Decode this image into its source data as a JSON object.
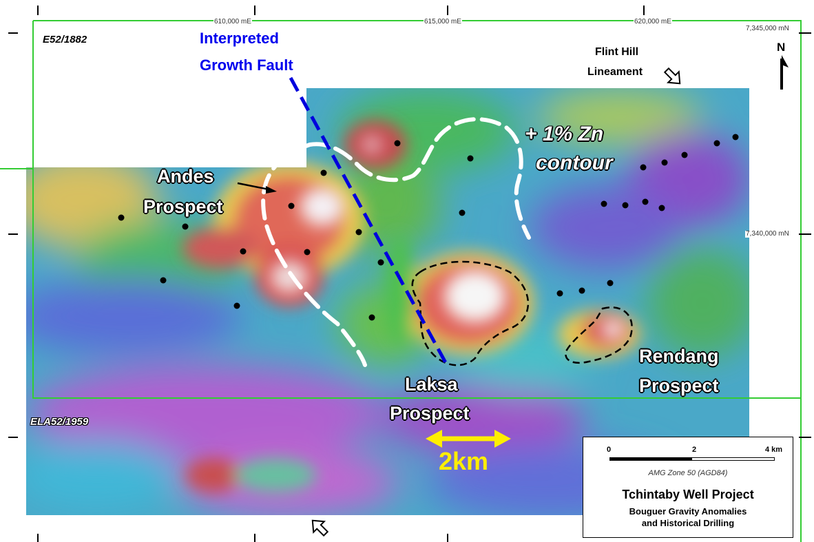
{
  "map": {
    "grid_labels": {
      "x1": "610,000 mE",
      "x2": "615,000 mE",
      "x3": "620,000 mE",
      "y1": "7,345,000 mN",
      "y2": "7,340,000 mN"
    },
    "north_label": "N",
    "lease_e52": "E52/1882",
    "lease_ela52": "ELA52/1959",
    "fault_label_line1": "Interpreted",
    "fault_label_line2": "Growth Fault",
    "lineament_line1": "Flint Hill",
    "lineament_line2": "Lineament",
    "zn_contour_line1": "+ 1% Zn",
    "zn_contour_line2": "contour",
    "prospects": {
      "andes_line1": "Andes",
      "andes_line2": "Prospect",
      "laksa_line1": "Laksa",
      "laksa_line2": "Prospect",
      "rendang_line1": "Rendang",
      "rendang_line2": "Prospect"
    },
    "scale_arrow_label": "2km",
    "colors": {
      "fault_line": "#0000dd",
      "tenement_boundary": "#33cc33",
      "zn_contour": "#ffffff",
      "scale_arrow": "#ffee00"
    }
  },
  "legend": {
    "scale_ticks": [
      "0",
      "2",
      "4 km"
    ],
    "projection": "AMG Zone 50 (AGD84)",
    "title": "Tchintaby Well Project",
    "subtitle_line1": "Bouguer Gravity Anomalies",
    "subtitle_line2": "and Historical Drilling"
  }
}
